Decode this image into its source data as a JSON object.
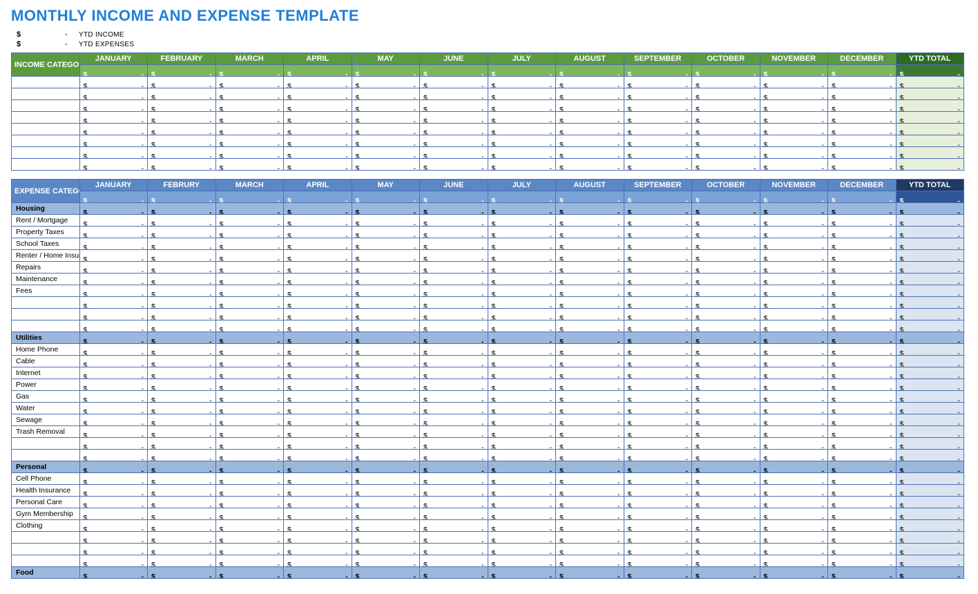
{
  "title": "MONTHLY INCOME AND EXPENSE TEMPLATE",
  "currency_symbol": "$",
  "dash": "-",
  "ytd_summary": [
    {
      "symbol": "$",
      "dash": "-",
      "label": "YTD INCOME"
    },
    {
      "symbol": "$",
      "dash": "-",
      "label": "YTD EXPENSES"
    }
  ],
  "months": [
    "JANUARY",
    "FEBRUARY",
    "MARCH",
    "APRIL",
    "MAY",
    "JUNE",
    "JULY",
    "AUGUST",
    "SEPTEMBER",
    "OCTOBER",
    "NOVEMBER",
    "DECEMBER"
  ],
  "months_exp": [
    "JANUARY",
    "FEBRURY",
    "MARCH",
    "APRIL",
    "MAY",
    "JUNE",
    "JULY",
    "AUGUST",
    "SEPTEMBER",
    "OCTOBER",
    "NOVEMBER",
    "DECEMBER"
  ],
  "ytd_total_label": "YTD TOTAL",
  "income": {
    "category_header": "INCOME CATEGORY",
    "header_colors": {
      "main": "#5b9b3e",
      "sub": "#7db65c",
      "ytd_main": "#2d6b20",
      "ytd_sub": "#3e7a2e",
      "ytd_cell": "#e6efd9"
    },
    "row_count": 8
  },
  "expense": {
    "category_header": "EXPENSE CATEGORY",
    "header_colors": {
      "main": "#5a87c6",
      "sub": "#7ba3d6",
      "ytd_main": "#1f3864",
      "ytd_sub": "#2e5597",
      "section": "#9bb8dc",
      "ytd_cell": "#dbe5f1"
    },
    "sections": [
      {
        "name": "Housing",
        "items": [
          "Rent / Mortgage",
          "Property Taxes",
          "School Taxes",
          "Renter / Home Insurance",
          "Repairs",
          "Maintenance",
          "Fees",
          "",
          "",
          ""
        ]
      },
      {
        "name": "Utilities",
        "items": [
          "Home Phone",
          "Cable",
          "Internet",
          "Power",
          "Gas",
          "Water",
          "Sewage",
          "Trash Removal",
          "",
          ""
        ]
      },
      {
        "name": "Personal",
        "items": [
          "Cell Phone",
          "Health Insurance",
          "Personal Care",
          "Gym Membership",
          "Clothing",
          "",
          "",
          ""
        ]
      },
      {
        "name": "Food",
        "items": []
      }
    ]
  },
  "colors": {
    "title": "#1f7fd6",
    "border": "#4a6fb5",
    "background": "#ffffff",
    "text": "#000000"
  },
  "typography": {
    "title_fontsize": 22,
    "cell_fontsize": 10.5,
    "header_fontsize": 11,
    "font_family": "Arial"
  }
}
